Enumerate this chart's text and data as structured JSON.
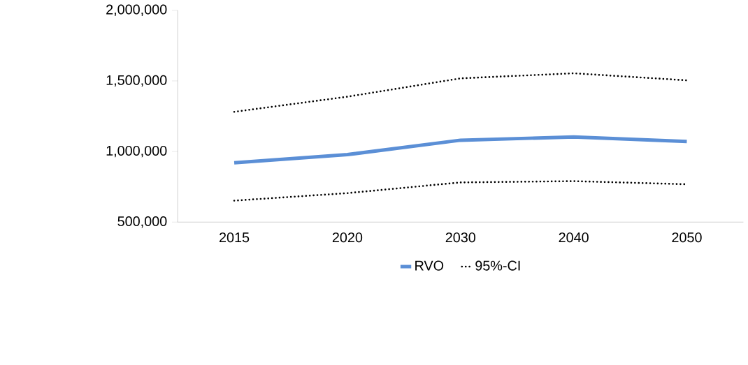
{
  "chart_data": {
    "type": "line",
    "categories": [
      "2015",
      "2020",
      "2030",
      "2040",
      "2050"
    ],
    "series": [
      {
        "name": "RVO",
        "color": "#5b8fd6",
        "line_style": "solid",
        "values": [
          920000,
          978000,
          1080000,
          1103000,
          1071000
        ]
      },
      {
        "name": "95%-CI",
        "color": "#000000",
        "line_style": "dotted",
        "values": [
          1281000,
          1388000,
          1518000,
          1554000,
          1504000
        ]
      },
      {
        "color": "#000000",
        "line_style": "dotted",
        "values": [
          652000,
          705000,
          781000,
          790000,
          768000
        ]
      }
    ],
    "ylim": [
      500000,
      2000000
    ],
    "yticks": [
      {
        "value": 500000,
        "label": "500,000"
      },
      {
        "value": 1000000,
        "label": "1,000,000"
      },
      {
        "value": 1500000,
        "label": "1,500,000"
      },
      {
        "value": 2000000,
        "label": "2,000,000"
      }
    ],
    "grid": false,
    "legend": "bottom",
    "marker": "none"
  }
}
